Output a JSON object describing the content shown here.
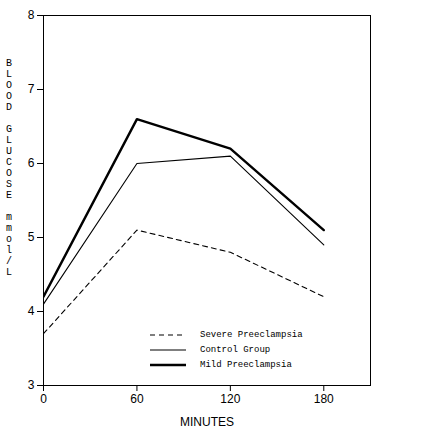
{
  "chart_data": {
    "type": "line",
    "x_label": "MINUTES",
    "y_label": "BLOOD GLUCOSE mmol/L",
    "x": [
      0,
      60,
      120,
      180
    ],
    "series": [
      {
        "name": "Severe Preeclampsia",
        "color": "#000000",
        "line_style": "dashed",
        "values": [
          3.7,
          5.1,
          4.8,
          4.2
        ]
      },
      {
        "name": "Control Group",
        "color": "#000000",
        "line_style": "solid",
        "values": [
          4.1,
          6.0,
          6.1,
          4.9
        ]
      },
      {
        "name": "Mild Preeclampsia",
        "color": "#000000",
        "line_style": "bold",
        "values": [
          4.2,
          6.6,
          6.2,
          5.1
        ]
      }
    ],
    "xlim": [
      0,
      210
    ],
    "xticks": [
      0,
      60,
      120,
      180
    ],
    "ylim": [
      3,
      8
    ],
    "yticks": [
      3,
      4,
      5,
      6,
      7,
      8
    ],
    "grid": false,
    "legend": "bottom-right"
  }
}
